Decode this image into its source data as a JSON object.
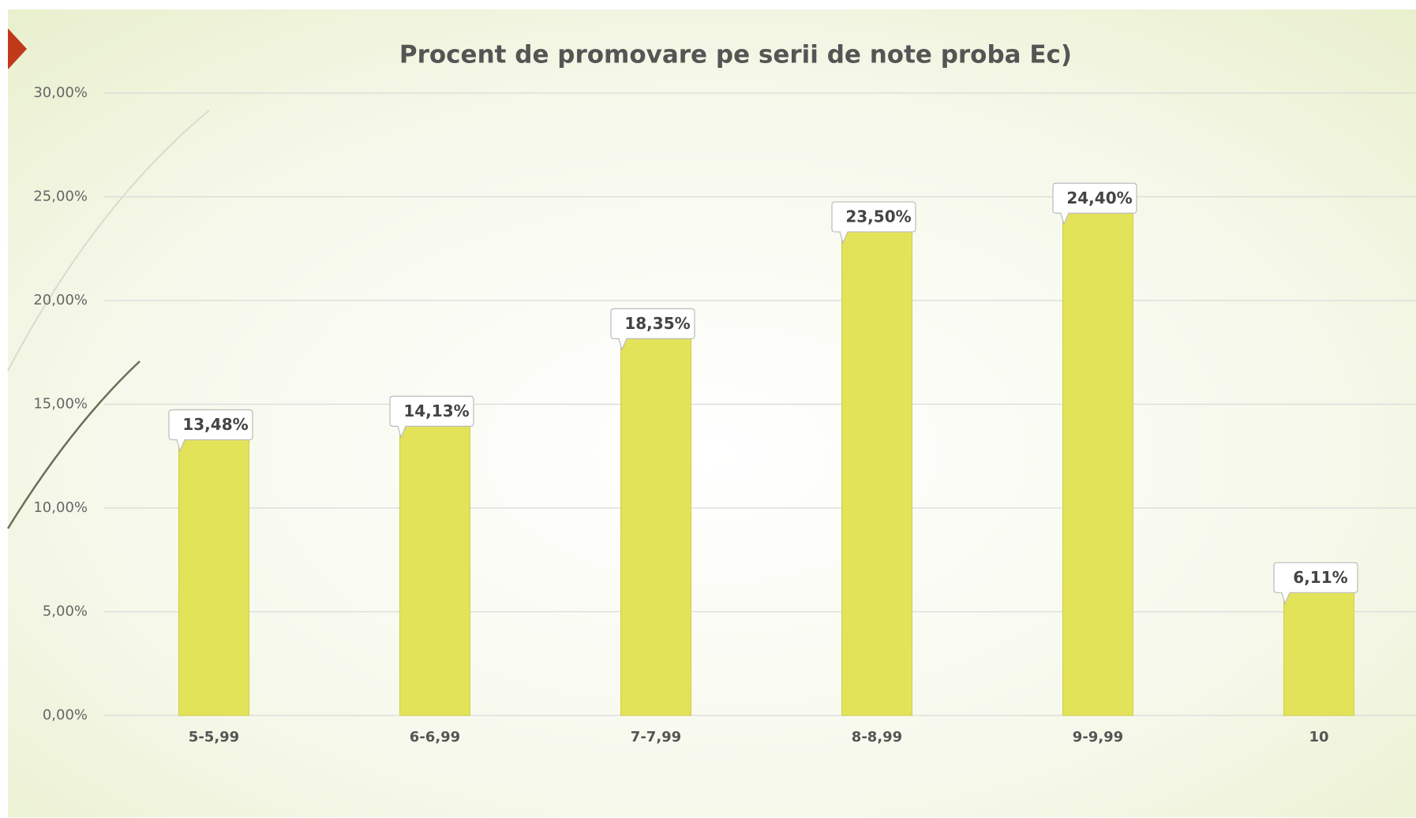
{
  "chart_data": {
    "type": "bar",
    "title": "Procent de promovare pe serii de note proba Ec)",
    "categories": [
      "5-5,99",
      "6-6,99",
      "7-7,99",
      "8-8,99",
      "9-9,99",
      "10"
    ],
    "values": [
      13.48,
      14.13,
      18.35,
      23.5,
      24.4,
      6.11
    ],
    "value_labels": [
      "13,48%",
      "14,13%",
      "18,35%",
      "23,50%",
      "24,40%",
      "6,11%"
    ],
    "color": "#e3e35a",
    "ylim": [
      0,
      30
    ],
    "yticks": [
      {
        "value": 0,
        "label": "0,00%"
      },
      {
        "value": 5,
        "label": "5,00%"
      },
      {
        "value": 10,
        "label": "10,00%"
      },
      {
        "value": 15,
        "label": "15,00%"
      },
      {
        "value": 20,
        "label": "20,00%"
      },
      {
        "value": 25,
        "label": "25,00%"
      },
      {
        "value": 30,
        "label": "30,00%"
      }
    ],
    "grid": true
  }
}
